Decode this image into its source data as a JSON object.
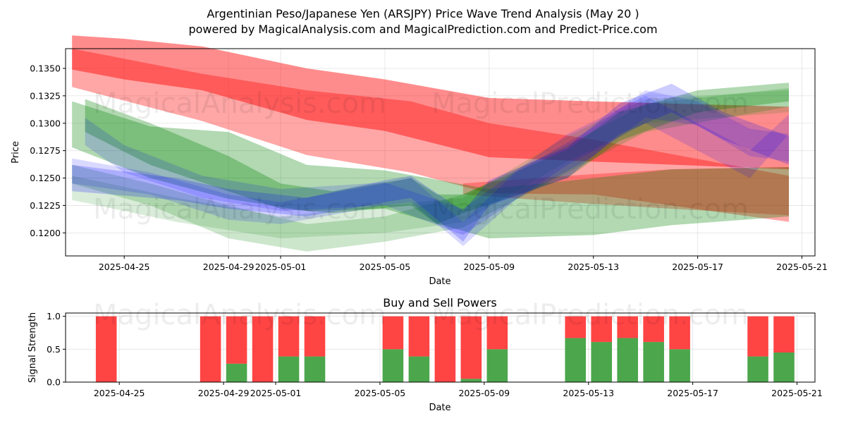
{
  "title_line1": "Argentinian Peso/Japanese Yen (ARSJPY) Price Wave Trend Analysis (May 20 )",
  "title_line2": "powered by MagicalAnalysis.com and MagicalPrediction.com and Predict-Price.com",
  "watermarks": [
    "MagicalAnalysis.com",
    "MagicalPrediction.com"
  ],
  "colors": {
    "red": "#ff0000",
    "green": "#008000",
    "blue": "#0000ff",
    "buy": "#4ca64c",
    "sell": "#ff4444"
  },
  "chart_data": [
    {
      "type": "area",
      "xlabel": "Date",
      "ylabel": "Price",
      "ylim": [
        0.1179,
        0.1368
      ],
      "xlim": [
        "2025-04-22T18:00",
        "2025-05-21T12:00"
      ],
      "x_ticks": [
        "2025-04-25",
        "2025-04-29",
        "2025-05-01",
        "2025-05-05",
        "2025-05-09",
        "2025-05-13",
        "2025-05-17",
        "2025-05-21"
      ],
      "y_ticks": [
        "0.1200",
        "0.1225",
        "0.1250",
        "0.1275",
        "0.1300",
        "0.1325",
        "0.1350"
      ],
      "grid": true,
      "series": [
        {
          "color": "red",
          "opacity": 0.45,
          "points": [
            [
              "2025-04-23T00:00",
              0.1349,
              0.138
            ],
            [
              "2025-04-25T00:00",
              0.134,
              0.1377
            ],
            [
              "2025-04-28T00:00",
              0.133,
              0.137
            ],
            [
              "2025-05-02T00:00",
              0.1303,
              0.135
            ],
            [
              "2025-05-05T00:00",
              0.1293,
              0.134
            ],
            [
              "2025-05-09T00:00",
              0.1269,
              0.1323
            ],
            [
              "2025-05-13T00:00",
              0.1265,
              0.132
            ],
            [
              "2025-05-20T12:00",
              0.1258,
              0.1315
            ]
          ]
        },
        {
          "color": "red",
          "opacity": 0.35,
          "points": [
            [
              "2025-04-23T00:00",
              0.1333,
              0.1368
            ],
            [
              "2025-04-28T00:00",
              0.1302,
              0.1345
            ],
            [
              "2025-05-02T00:00",
              0.1271,
              0.133
            ],
            [
              "2025-05-06T00:00",
              0.1255,
              0.132
            ],
            [
              "2025-05-09T00:00",
              0.1236,
              0.13
            ],
            [
              "2025-05-13T00:00",
              0.1235,
              0.1285
            ],
            [
              "2025-05-20T12:00",
              0.121,
              0.1252
            ]
          ]
        },
        {
          "color": "red",
          "opacity": 0.3,
          "points": [
            [
              "2025-05-08T00:00",
              0.1235,
              0.1245
            ],
            [
              "2025-05-12T00:00",
              0.1228,
              0.1252
            ],
            [
              "2025-05-16T00:00",
              0.1222,
              0.1258
            ],
            [
              "2025-05-20T12:00",
              0.1216,
              0.126
            ]
          ]
        },
        {
          "color": "green",
          "opacity": 0.3,
          "points": [
            [
              "2025-04-23T00:00",
              0.1278,
              0.132
            ],
            [
              "2025-04-26T00:00",
              0.125,
              0.1297
            ],
            [
              "2025-04-29T00:00",
              0.1231,
              0.1292
            ],
            [
              "2025-05-02T00:00",
              0.122,
              0.1262
            ],
            [
              "2025-05-05T00:00",
              0.1222,
              0.1257
            ],
            [
              "2025-05-09T00:00",
              0.1195,
              0.124
            ],
            [
              "2025-05-13T00:00",
              0.1198,
              0.125
            ],
            [
              "2025-05-16T00:00",
              0.1207,
              0.1258
            ],
            [
              "2025-05-20T12:00",
              0.1215,
              0.126
            ]
          ]
        },
        {
          "color": "green",
          "opacity": 0.3,
          "points": [
            [
              "2025-04-23T12:00",
              0.1292,
              0.1322
            ],
            [
              "2025-04-26T00:00",
              0.1262,
              0.13
            ],
            [
              "2025-04-29T00:00",
              0.1238,
              0.127
            ],
            [
              "2025-05-01T00:00",
              0.1222,
              0.1245
            ],
            [
              "2025-05-03T00:00",
              0.1218,
              0.1238
            ],
            [
              "2025-05-06T00:00",
              0.1225,
              0.125
            ],
            [
              "2025-05-07T00:00",
              0.1208,
              0.1235
            ],
            [
              "2025-05-08T00:00",
              0.1218,
              0.1235
            ],
            [
              "2025-05-12T00:00",
              0.125,
              0.1276
            ],
            [
              "2025-05-14T00:00",
              0.1284,
              0.131
            ],
            [
              "2025-05-17T00:00",
              0.131,
              0.133
            ],
            [
              "2025-05-20T12:00",
              0.132,
              0.1337
            ]
          ]
        },
        {
          "color": "green",
          "opacity": 0.2,
          "points": [
            [
              "2025-04-23T00:00",
              0.1245,
              0.1262
            ],
            [
              "2025-04-26T00:00",
              0.1225,
              0.1245
            ],
            [
              "2025-04-29T00:00",
              0.1195,
              0.1225
            ],
            [
              "2025-05-02T00:00",
              0.1183,
              0.1208
            ],
            [
              "2025-05-05T00:00",
              0.1192,
              0.1215
            ],
            [
              "2025-05-08T00:00",
              0.1205,
              0.1235
            ],
            [
              "2025-05-12T00:00",
              0.1255,
              0.128
            ],
            [
              "2025-05-15T00:00",
              0.1292,
              0.1318
            ],
            [
              "2025-05-20T12:00",
              0.1315,
              0.1332
            ]
          ]
        },
        {
          "color": "green",
          "opacity": 0.15,
          "points": [
            [
              "2025-04-23T00:00",
              0.123,
              0.1252
            ],
            [
              "2025-04-27T00:00",
              0.121,
              0.1232
            ],
            [
              "2025-05-01T00:00",
              0.1195,
              0.1215
            ],
            [
              "2025-05-05T00:00",
              0.12,
              0.1225
            ],
            [
              "2025-05-08T00:00",
              0.121,
              0.1232
            ],
            [
              "2025-05-12T00:00",
              0.1265,
              0.1288
            ],
            [
              "2025-05-15T00:00",
              0.13,
              0.1322
            ],
            [
              "2025-05-20T12:00",
              0.131,
              0.133
            ]
          ]
        },
        {
          "color": "blue",
          "opacity": 0.2,
          "points": [
            [
              "2025-04-23T00:00",
              0.1238,
              0.1262
            ],
            [
              "2025-04-27T00:00",
              0.123,
              0.125
            ],
            [
              "2025-04-29T00:00",
              0.1222,
              0.124
            ],
            [
              "2025-05-02T00:00",
              0.1215,
              0.1232
            ],
            [
              "2025-05-05T00:00",
              0.1228,
              0.1248
            ],
            [
              "2025-05-06T00:00",
              0.1232,
              0.1252
            ],
            [
              "2025-05-08T00:00",
              0.1192,
              0.122
            ],
            [
              "2025-05-09T00:00",
              0.1225,
              0.1248
            ],
            [
              "2025-05-12T00:00",
              0.125,
              0.1278
            ],
            [
              "2025-05-14T00:00",
              0.129,
              0.1318
            ],
            [
              "2025-05-16T00:00",
              0.131,
              0.1336
            ],
            [
              "2025-05-18T00:00",
              0.1285,
              0.131
            ],
            [
              "2025-05-20T12:00",
              0.1262,
              0.1288
            ]
          ]
        },
        {
          "color": "blue",
          "opacity": 0.15,
          "points": [
            [
              "2025-04-23T00:00",
              0.1245,
              0.1268
            ],
            [
              "2025-04-26T00:00",
              0.1235,
              0.1255
            ],
            [
              "2025-04-29T00:00",
              0.1212,
              0.1235
            ],
            [
              "2025-05-01T00:00",
              0.1208,
              0.1228
            ],
            [
              "2025-05-05T00:00",
              0.1225,
              0.1245
            ],
            [
              "2025-05-06T00:00",
              0.1228,
              0.125
            ],
            [
              "2025-05-08T00:00",
              0.1188,
              0.121
            ],
            [
              "2025-05-10T00:00",
              0.123,
              0.1255
            ],
            [
              "2025-05-13T00:00",
              0.127,
              0.1296
            ],
            [
              "2025-05-15T00:00",
              0.1305,
              0.133
            ],
            [
              "2025-05-17T00:00",
              0.1298,
              0.132
            ],
            [
              "2025-05-19T00:00",
              0.127,
              0.1295
            ],
            [
              "2025-05-20T12:00",
              0.1265,
              0.129
            ]
          ]
        },
        {
          "color": "blue",
          "opacity": 0.15,
          "points": [
            [
              "2025-04-23T12:00",
              0.128,
              0.1305
            ],
            [
              "2025-04-25T00:00",
              0.1255,
              0.128
            ],
            [
              "2025-04-28T00:00",
              0.1232,
              0.1252
            ],
            [
              "2025-05-01T00:00",
              0.122,
              0.124
            ],
            [
              "2025-05-05T00:00",
              0.1225,
              0.1246
            ],
            [
              "2025-05-08T00:00",
              0.1198,
              0.1222
            ],
            [
              "2025-05-12T00:00",
              0.1262,
              0.129
            ],
            [
              "2025-05-15T00:00",
              0.13,
              0.1325
            ],
            [
              "2025-05-19T00:00",
              0.125,
              0.1275
            ],
            [
              "2025-05-20T12:00",
              0.129,
              0.1308
            ]
          ]
        }
      ]
    },
    {
      "type": "bar",
      "title": "Buy and Sell Powers",
      "xlabel": "Date",
      "ylabel": "Signal Strength",
      "ylim": [
        0,
        1.05
      ],
      "y_ticks": [
        "0.0",
        "0.5",
        "1.0"
      ],
      "x_ticks": [
        "2025-04-25",
        "2025-04-29",
        "2025-05-01",
        "2025-05-05",
        "2025-05-09",
        "2025-05-13",
        "2025-05-17",
        "2025-05-21"
      ],
      "categories": [
        "2025-04-24",
        "2025-04-28",
        "2025-04-29",
        "2025-04-30",
        "2025-05-01",
        "2025-05-02",
        "2025-05-05",
        "2025-05-06",
        "2025-05-07",
        "2025-05-08",
        "2025-05-09",
        "2025-05-12",
        "2025-05-13",
        "2025-05-14",
        "2025-05-15",
        "2025-05-16",
        "2025-05-19",
        "2025-05-20"
      ],
      "series": [
        {
          "name": "Buy",
          "values": [
            0.0,
            0.0,
            0.28,
            0.0,
            0.39,
            0.39,
            0.5,
            0.39,
            0.0,
            0.05,
            0.5,
            0.67,
            0.61,
            0.67,
            0.61,
            0.5,
            0.39,
            0.45
          ]
        },
        {
          "name": "Sell",
          "values": [
            1.0,
            1.0,
            0.72,
            1.0,
            0.61,
            0.61,
            0.5,
            0.61,
            1.0,
            0.95,
            0.5,
            0.33,
            0.39,
            0.33,
            0.39,
            0.5,
            0.61,
            0.55
          ]
        }
      ]
    }
  ]
}
